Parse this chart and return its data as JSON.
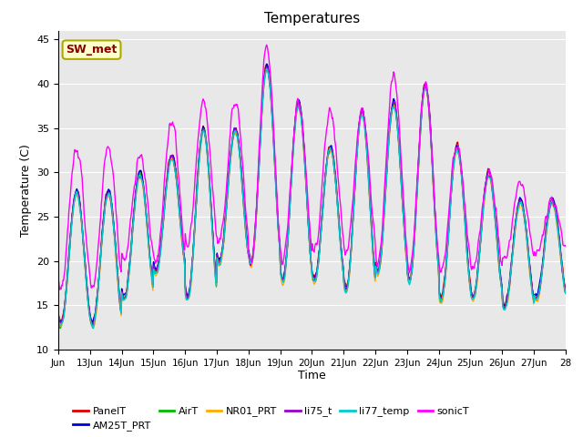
{
  "title": "Temperatures",
  "xlabel": "Time",
  "ylabel": "Temperature (C)",
  "ylim": [
    10,
    46
  ],
  "xlim": [
    0,
    16
  ],
  "annotation_text": "SW_met",
  "annotation_facecolor": "#ffffcc",
  "annotation_edgecolor": "#aaaa00",
  "annotation_textcolor": "#880000",
  "background_color": "#e8e8e8",
  "series_colors": {
    "PanelT": "#dd0000",
    "AM25T_PRT": "#0000dd",
    "AirT": "#00bb00",
    "NR01_PRT": "#ffaa00",
    "li75_t": "#9900cc",
    "li77_temp": "#00cccc",
    "sonicT": "#ff00ff"
  },
  "x_tick_labels": [
    "Jun",
    "13Jun",
    "14Jun",
    "15Jun",
    "16Jun",
    "17Jun",
    "18Jun",
    "19Jun",
    "20Jun",
    "21Jun",
    "22Jun",
    "23Jun",
    "24Jun",
    "25Jun",
    "26Jun",
    "27Jun",
    "28"
  ],
  "x_tick_positions": [
    0,
    1,
    2,
    3,
    4,
    5,
    6,
    7,
    8,
    9,
    10,
    11,
    12,
    13,
    14,
    15,
    16
  ],
  "y_ticks": [
    10,
    15,
    20,
    25,
    30,
    35,
    40,
    45
  ],
  "linewidth": 1.0,
  "day_peaks_base": [
    28,
    30,
    32,
    35,
    35,
    42,
    38,
    33,
    37,
    38,
    40,
    33,
    30,
    27,
    27
  ],
  "day_peaks_sonic": [
    33,
    32,
    36,
    38,
    38,
    44,
    38,
    37,
    37,
    41,
    40,
    33,
    30,
    29,
    27
  ],
  "day_mins_base": [
    13,
    16,
    19,
    16,
    20,
    20,
    18,
    18,
    17,
    19,
    18,
    16,
    16,
    15,
    16
  ],
  "day_mins_sonic": [
    17,
    20,
    20,
    22,
    22,
    20,
    20,
    21,
    21,
    20,
    19,
    19,
    19,
    20,
    21
  ]
}
